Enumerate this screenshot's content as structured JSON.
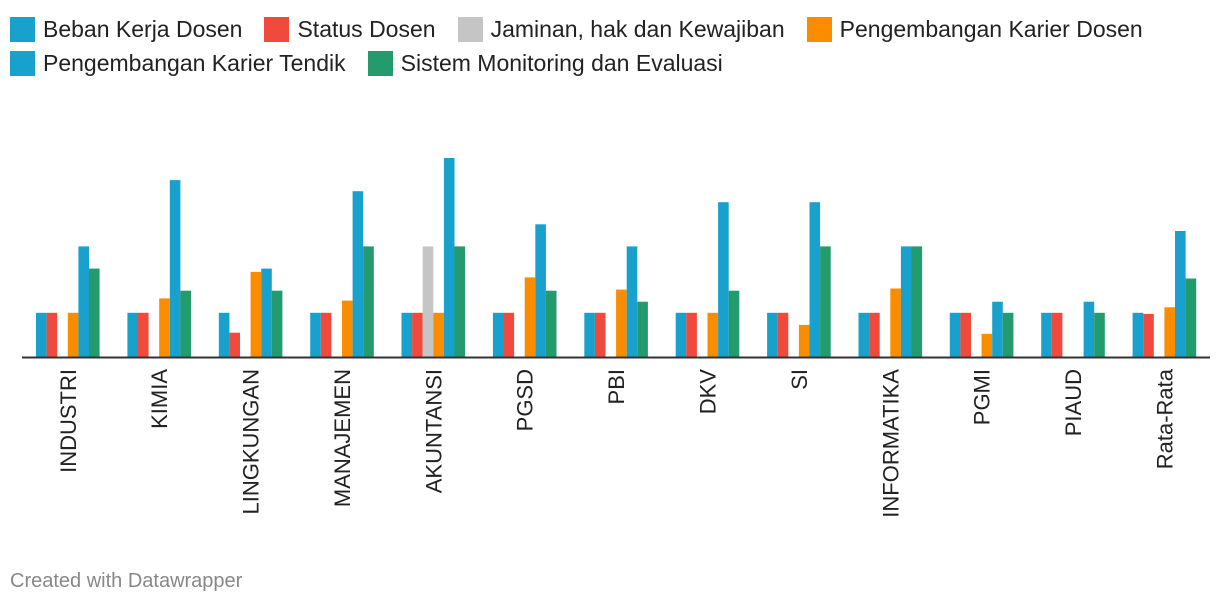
{
  "chart_data": {
    "type": "bar",
    "title": "",
    "xlabel": "",
    "ylabel": "",
    "ylim": [
      0,
      9
    ],
    "grid": false,
    "legend_position": "top",
    "categories": [
      "INDUSTRI",
      "KIMIA",
      "LINGKUNGAN",
      "MANAJEMEN",
      "AKUNTANSI",
      "PGSD",
      "PBI",
      "DKV",
      "SI",
      "INFORMATIKA",
      "PGMI",
      "PIAUD",
      "Rata-Rata"
    ],
    "series": [
      {
        "name": "Beban Kerja Dosen",
        "color": "#18a1cd",
        "values": [
          2,
          2,
          2,
          2,
          2,
          2,
          2,
          2,
          2,
          2,
          2,
          2,
          2
        ]
      },
      {
        "name": "Status Dosen",
        "color": "#ef4a3c",
        "values": [
          2,
          2,
          1.1,
          2,
          2,
          2,
          2,
          2,
          2,
          2,
          2,
          2,
          1.95
        ]
      },
      {
        "name": "Jaminan, hak dan Kewajiban",
        "color": "#c5c5c5",
        "values": [
          0,
          0,
          0,
          0,
          5,
          0,
          0,
          0,
          0,
          0,
          0,
          0,
          0
        ]
      },
      {
        "name": "Pengembangan Karier Dosen",
        "color": "#fa8c00",
        "values": [
          2,
          2.65,
          3.85,
          2.55,
          2,
          3.6,
          3.05,
          2,
          1.45,
          3.1,
          1.05,
          0,
          2.25
        ]
      },
      {
        "name": "Pengembangan Karier Tendik",
        "color": "#18a1cd",
        "values": [
          5,
          8,
          4,
          7.5,
          9,
          6,
          5,
          7,
          7,
          5,
          2.5,
          2.5,
          5.7
        ]
      },
      {
        "name": "Sistem Monitoring dan Evaluasi",
        "color": "#239b6c",
        "values": [
          4,
          3,
          3,
          5,
          5,
          3,
          2.5,
          3,
          5,
          5,
          2,
          2,
          3.55
        ]
      }
    ]
  },
  "footer": {
    "credit": "Created with Datawrapper"
  }
}
